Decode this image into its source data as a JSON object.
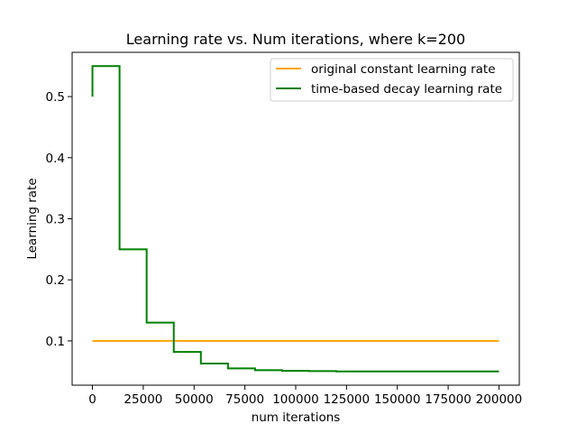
{
  "chart_data": {
    "type": "line",
    "title": "Learning rate vs. Num iterations, where k=200",
    "xlabel": "num iterations",
    "ylabel": "Learning rate",
    "xlim": [
      -10000,
      210000
    ],
    "ylim": [
      0.0275,
      0.5725
    ],
    "x_ticks": [
      0,
      25000,
      50000,
      75000,
      100000,
      125000,
      150000,
      175000,
      200000
    ],
    "x_tick_labels": [
      "0",
      "25000",
      "50000",
      "75000",
      "100000",
      "125000",
      "150000",
      "175000",
      "200000"
    ],
    "y_ticks": [
      0.1,
      0.2,
      0.3,
      0.4,
      0.5
    ],
    "y_tick_labels": [
      "0.1",
      "0.2",
      "0.3",
      "0.4",
      "0.5"
    ],
    "grid": false,
    "legend_position": "top-right",
    "series": [
      {
        "name": "original constant learning rate",
        "color": "#ffa500",
        "x": [
          0,
          200000
        ],
        "y": [
          0.1,
          0.1
        ]
      },
      {
        "name": "time-based decay learning rate",
        "color": "#008000",
        "x": [
          0,
          0,
          13333,
          13333,
          26667,
          26667,
          40000,
          40000,
          53333,
          53333,
          66667,
          66667,
          80000,
          80000,
          93333,
          93333,
          106667,
          106667,
          120000,
          120000,
          200000
        ],
        "y": [
          0.5,
          0.55,
          0.55,
          0.25,
          0.25,
          0.13,
          0.13,
          0.082,
          0.082,
          0.063,
          0.063,
          0.055,
          0.055,
          0.052,
          0.052,
          0.051,
          0.051,
          0.0505,
          0.0505,
          0.05,
          0.05
        ]
      }
    ]
  }
}
